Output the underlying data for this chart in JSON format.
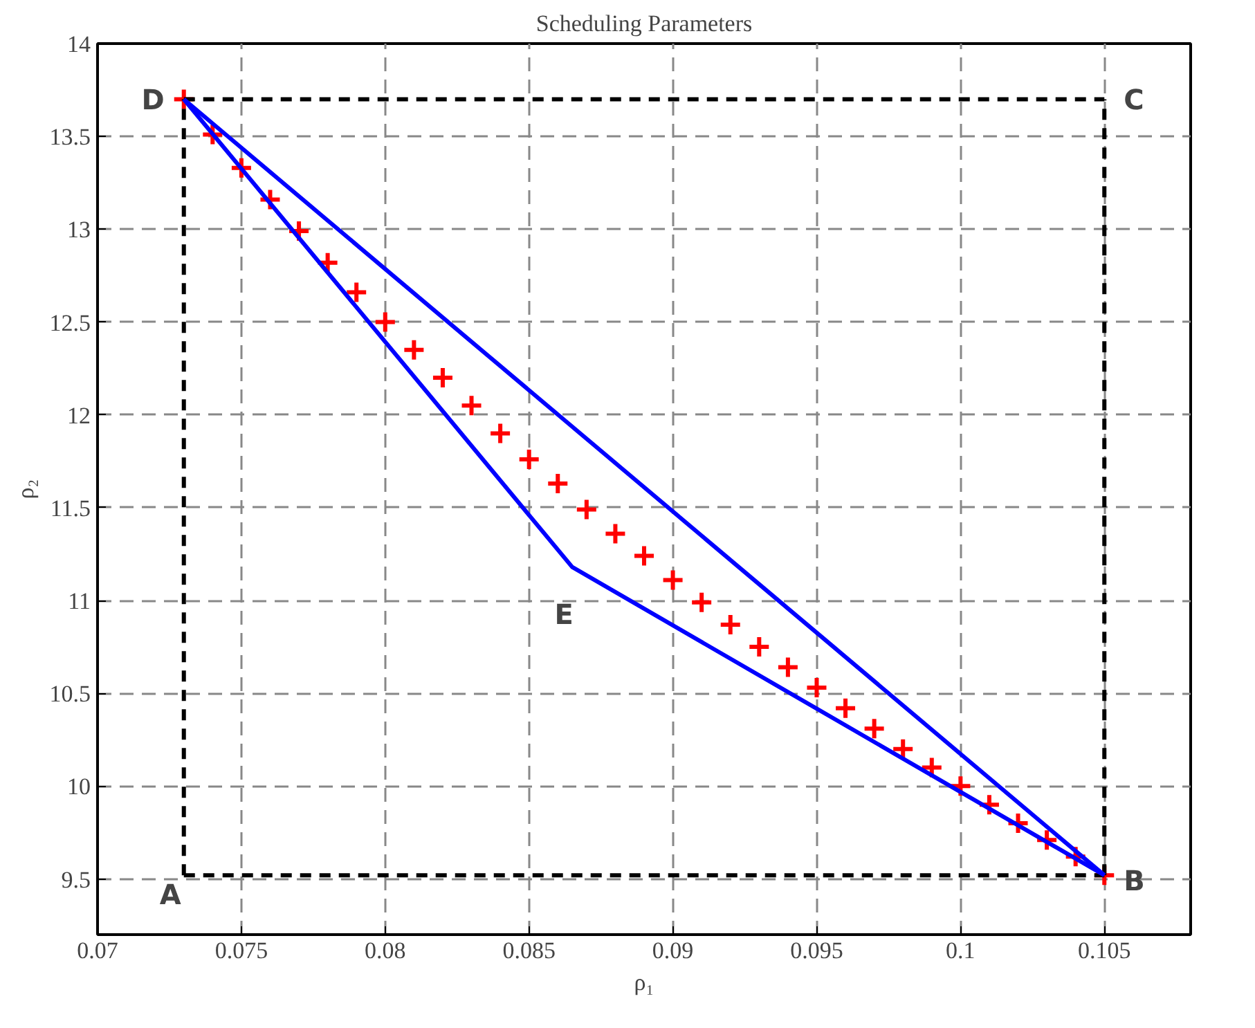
{
  "chart_data": {
    "type": "line",
    "title": "Scheduling Parameters",
    "xlabel": "ρ₁",
    "ylabel": "ρ₂",
    "xlim": [
      0.07,
      0.108
    ],
    "ylim": [
      9.2,
      14
    ],
    "xticks": [
      {
        "value": 0.07,
        "label": "0.07"
      },
      {
        "value": 0.075,
        "label": "0.075"
      },
      {
        "value": 0.08,
        "label": "0.08"
      },
      {
        "value": 0.085,
        "label": "0.085"
      },
      {
        "value": 0.09,
        "label": "0.09"
      },
      {
        "value": 0.095,
        "label": "0.095"
      },
      {
        "value": 0.1,
        "label": "0.1"
      },
      {
        "value": 0.105,
        "label": "0.105"
      }
    ],
    "yticks": [
      9.5,
      10,
      10.5,
      11,
      11.5,
      12,
      12.5,
      13,
      13.5,
      14
    ],
    "grid": true,
    "series": [
      {
        "type": "scatter",
        "color": "#ff0000",
        "marker": "cross",
        "x": [
          0.073,
          0.074,
          0.075,
          0.076,
          0.077,
          0.078,
          0.079,
          0.08,
          0.081,
          0.082,
          0.083,
          0.084,
          0.085,
          0.086,
          0.087,
          0.088,
          0.089,
          0.09,
          0.091,
          0.092,
          0.093,
          0.094,
          0.095,
          0.096,
          0.097,
          0.098,
          0.099,
          0.1,
          0.101,
          0.102,
          0.103,
          0.104,
          0.105
        ],
        "values": [
          13.7,
          13.51,
          13.33,
          13.16,
          12.99,
          12.82,
          12.66,
          12.5,
          12.35,
          12.2,
          12.05,
          11.9,
          11.76,
          11.63,
          11.49,
          11.36,
          11.24,
          11.11,
          10.99,
          10.87,
          10.75,
          10.64,
          10.53,
          10.42,
          10.31,
          10.2,
          10.1,
          10.0,
          9.9,
          9.8,
          9.71,
          9.62,
          9.52
        ]
      },
      {
        "color": "#000000",
        "line_style": "dashed",
        "x": [
          0.073,
          0.105
        ],
        "values": [
          9.52,
          9.52
        ]
      },
      {
        "color": "#000000",
        "line_style": "dashed",
        "x": [
          0.105,
          0.105
        ],
        "values": [
          9.52,
          13.7
        ]
      },
      {
        "color": "#000000",
        "line_style": "dashed",
        "x": [
          0.073,
          0.105
        ],
        "values": [
          13.7,
          13.7
        ]
      },
      {
        "color": "#000000",
        "line_style": "dashed",
        "x": [
          0.073,
          0.073
        ],
        "values": [
          9.52,
          13.7
        ]
      },
      {
        "color": "#0000ff",
        "line_style": "solid",
        "x": [
          0.073,
          0.105
        ],
        "values": [
          13.7,
          9.52
        ]
      },
      {
        "color": "#0000ff",
        "line_style": "solid",
        "x": [
          0.073,
          0.0865,
          0.105
        ],
        "values": [
          13.7,
          11.18,
          9.52
        ]
      }
    ],
    "annotations": [
      {
        "text": "A",
        "x": 0.073,
        "y": 9.52
      },
      {
        "text": "B",
        "x": 0.105,
        "y": 9.52
      },
      {
        "text": "C",
        "x": 0.105,
        "y": 13.7
      },
      {
        "text": "D",
        "x": 0.073,
        "y": 13.7
      },
      {
        "text": "E",
        "x": 0.0865,
        "y": 11.18
      }
    ]
  }
}
